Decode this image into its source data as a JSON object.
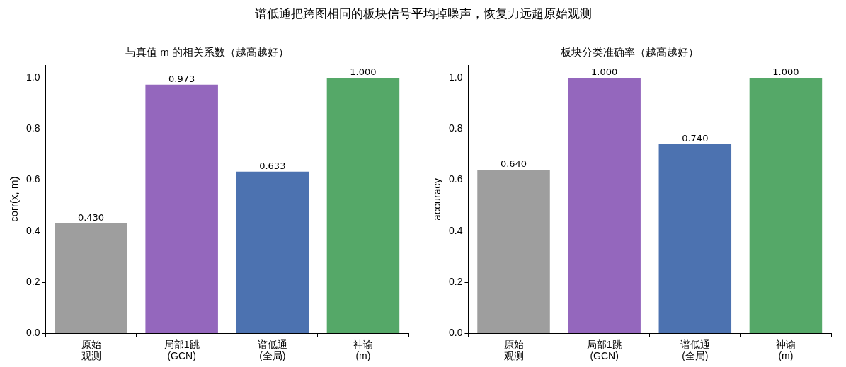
{
  "chart_data": [
    {
      "type": "bar",
      "title": "谱低通把跨图相同的板块信号平均掉噪声，恢复力远超原始观测",
      "subtitle": "与真值 m 的相关系数（越高越好）",
      "ylabel": "corr(x, m)",
      "categories": [
        "原始观测",
        "局部1跳\n(GCN)",
        "谱低通\n(全局)",
        "神谕\n(m)"
      ],
      "values": [
        0.43,
        0.973,
        0.633,
        1.0
      ],
      "colors": [
        "#9e9e9e",
        "#9467bd",
        "#4c72b0",
        "#55a868"
      ],
      "value_labels": [
        "0.430",
        "0.973",
        "0.633",
        "1.000"
      ],
      "ylim": [
        0,
        1.05
      ],
      "yticks": [
        {
          "value": 0,
          "label": "0.0"
        },
        {
          "value": 0.2,
          "label": "0.2"
        },
        {
          "value": 0.4,
          "label": "0.4"
        },
        {
          "value": 0.6,
          "label": "0.6"
        },
        {
          "value": 0.8,
          "label": "0.8"
        },
        {
          "value": 1,
          "label": "1.0"
        }
      ],
      "grid": false,
      "legend": false
    },
    {
      "type": "bar",
      "subtitle": "板块分类准确率（越高越好）",
      "ylabel": "accuracy",
      "categories": [
        "原始观测",
        "局部1跳\n(GCN)",
        "谱低通\n(全局)",
        "神谕\n(m)"
      ],
      "values": [
        0.64,
        1.0,
        0.74,
        1.0
      ],
      "colors": [
        "#9e9e9e",
        "#9467bd",
        "#4c72b0",
        "#55a868"
      ],
      "value_labels": [
        "0.640",
        "1.000",
        "0.740",
        "1.000"
      ],
      "ylim": [
        0,
        1.05
      ],
      "yticks": [
        {
          "value": 0,
          "label": "0.0"
        },
        {
          "value": 0.2,
          "label": "0.2"
        },
        {
          "value": 0.4,
          "label": "0.4"
        },
        {
          "value": 0.6,
          "label": "0.6"
        },
        {
          "value": 0.8,
          "label": "0.8"
        },
        {
          "value": 1,
          "label": "1.0"
        }
      ],
      "grid": false,
      "legend": false
    }
  ]
}
